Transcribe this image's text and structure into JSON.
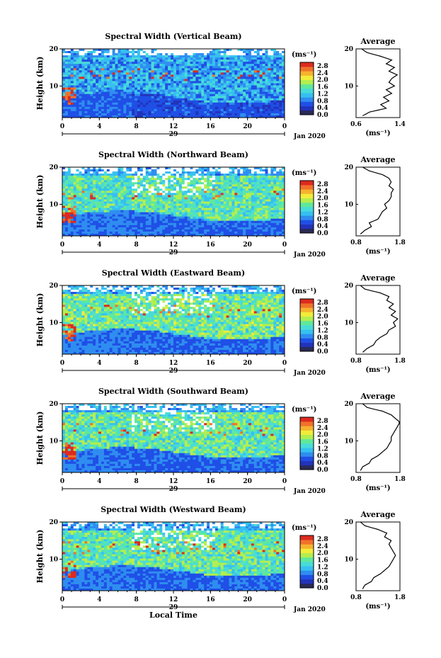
{
  "colors": {
    "scale": [
      "#2a2a55",
      "#2233bb",
      "#1f4fe6",
      "#2f8df0",
      "#36c0f0",
      "#48dcd8",
      "#5fe89c",
      "#b4ee4e",
      "#f2ec3a",
      "#f6b22e",
      "#f0722a",
      "#dd2a1e"
    ],
    "axis": "#000000",
    "gap": "#ffffff"
  },
  "chart_data": [
    {
      "type": "heatmap",
      "title": "Spectral Width (Vertical Beam)",
      "ylabel": "Height (km)",
      "xlabel": "",
      "x_ticks": [
        "0",
        "4",
        "8",
        "12",
        "16",
        "20",
        "0"
      ],
      "y_ticks": [
        "20",
        "10"
      ],
      "xlim": [
        0,
        24
      ],
      "ylim": [
        1.5,
        20
      ],
      "day_label": "29",
      "month_label": "Jan 2020",
      "colorbar": {
        "unit": "(ms⁻¹)",
        "ticks": [
          "2.8",
          "2.4",
          "2.0",
          "1.6",
          "1.2",
          "0.8",
          "0.4",
          "0.0"
        ],
        "range": [
          0,
          3.0
        ]
      },
      "profile": {
        "title": "Average",
        "xlabel": "(ms⁻¹)",
        "x_ticks": [
          "0.6",
          "1.4"
        ],
        "xlim": [
          0.6,
          1.4
        ],
        "y_ticks": [
          "20",
          "10"
        ],
        "heights": [
          2,
          3,
          4,
          5,
          6,
          7,
          8,
          9,
          10,
          11,
          12,
          13,
          14,
          15,
          16,
          17,
          18,
          19,
          20
        ],
        "values": [
          0.72,
          0.85,
          1.15,
          1.05,
          1.2,
          1.1,
          1.25,
          1.15,
          1.3,
          1.2,
          1.25,
          1.35,
          1.2,
          1.3,
          1.15,
          1.25,
          1.05,
          0.8,
          0.7
        ]
      },
      "field": {
        "base": 1.0,
        "low_level": 0.5,
        "upper_gaps": false
      }
    },
    {
      "type": "heatmap",
      "title": "Spectral Width (Northward Beam)",
      "ylabel": "Height (km)",
      "xlabel": "",
      "x_ticks": [
        "0",
        "4",
        "8",
        "12",
        "16",
        "20",
        "0"
      ],
      "y_ticks": [
        "20",
        "10"
      ],
      "xlim": [
        0,
        24
      ],
      "ylim": [
        1.5,
        20
      ],
      "day_label": "29",
      "month_label": "Jan 2020",
      "colorbar": {
        "unit": "(ms⁻¹)",
        "ticks": [
          "2.8",
          "2.4",
          "2.0",
          "1.6",
          "1.2",
          "0.8",
          "0.4",
          "0.0"
        ],
        "range": [
          0,
          3.0
        ]
      },
      "profile": {
        "title": "Average",
        "xlabel": "(ms⁻¹)",
        "x_ticks": [
          "0.8",
          "1.8"
        ],
        "xlim": [
          0.8,
          1.8
        ],
        "y_ticks": [
          "20",
          "10"
        ],
        "heights": [
          2,
          3,
          4,
          5,
          6,
          7,
          8,
          9,
          10,
          11,
          12,
          13,
          14,
          15,
          16,
          17,
          18,
          19,
          20
        ],
        "values": [
          0.9,
          1.0,
          1.15,
          1.1,
          1.3,
          1.35,
          1.4,
          1.5,
          1.45,
          1.55,
          1.6,
          1.6,
          1.65,
          1.55,
          1.6,
          1.55,
          1.4,
          1.1,
          0.95
        ]
      },
      "field": {
        "base": 1.5,
        "low_level": 0.6,
        "upper_gaps": true
      }
    },
    {
      "type": "heatmap",
      "title": "Spectral Width (Eastward Beam)",
      "ylabel": "Height (km)",
      "xlabel": "",
      "x_ticks": [
        "0",
        "4",
        "8",
        "12",
        "16",
        "20",
        "0"
      ],
      "y_ticks": [
        "20",
        "10"
      ],
      "xlim": [
        0,
        24
      ],
      "ylim": [
        1.5,
        20
      ],
      "day_label": "29",
      "month_label": "Jan 2020",
      "colorbar": {
        "unit": "(ms⁻¹)",
        "ticks": [
          "2.8",
          "2.4",
          "2.0",
          "1.6",
          "1.2",
          "0.8",
          "0.4",
          "0.0"
        ],
        "range": [
          0,
          3.0
        ]
      },
      "profile": {
        "title": "Average",
        "xlabel": "(ms⁻¹)",
        "x_ticks": [
          "0.8",
          "1.8"
        ],
        "xlim": [
          0.8,
          1.8
        ],
        "y_ticks": [
          "20",
          "10"
        ],
        "heights": [
          2,
          3,
          4,
          5,
          6,
          7,
          8,
          9,
          10,
          11,
          12,
          13,
          14,
          15,
          16,
          17,
          18,
          19,
          20
        ],
        "values": [
          0.95,
          1.05,
          1.2,
          1.25,
          1.35,
          1.5,
          1.55,
          1.7,
          1.65,
          1.75,
          1.6,
          1.7,
          1.55,
          1.65,
          1.5,
          1.55,
          1.35,
          1.0,
          0.9
        ]
      },
      "field": {
        "base": 1.6,
        "low_level": 0.6,
        "upper_gaps": true
      }
    },
    {
      "type": "heatmap",
      "title": "Spectral Width (Southward Beam)",
      "ylabel": "Height (km)",
      "xlabel": "",
      "x_ticks": [
        "0",
        "4",
        "8",
        "12",
        "16",
        "20",
        "0"
      ],
      "y_ticks": [
        "20",
        "10"
      ],
      "xlim": [
        0,
        24
      ],
      "ylim": [
        1.5,
        20
      ],
      "day_label": "29",
      "month_label": "Jan 2020",
      "colorbar": {
        "unit": "(ms⁻¹)",
        "ticks": [
          "2.8",
          "2.4",
          "2.0",
          "1.6",
          "1.2",
          "0.8",
          "0.4",
          "0.0"
        ],
        "range": [
          0,
          3.0
        ]
      },
      "profile": {
        "title": "Average",
        "xlabel": "(ms⁻¹)",
        "x_ticks": [
          "0.8",
          "1.8"
        ],
        "xlim": [
          0.8,
          1.8
        ],
        "y_ticks": [
          "20",
          "10"
        ],
        "heights": [
          2,
          3,
          4,
          5,
          6,
          7,
          8,
          9,
          10,
          11,
          12,
          13,
          14,
          15,
          16,
          17,
          18,
          19,
          20
        ],
        "values": [
          0.9,
          0.95,
          1.1,
          1.15,
          1.3,
          1.4,
          1.5,
          1.55,
          1.6,
          1.6,
          1.65,
          1.7,
          1.75,
          1.8,
          1.7,
          1.6,
          1.4,
          1.05,
          0.95
        ]
      },
      "field": {
        "base": 1.55,
        "low_level": 0.6,
        "upper_gaps": true
      }
    },
    {
      "type": "heatmap",
      "title": "Spectral Width (Westward Beam)",
      "ylabel": "Height (km)",
      "xlabel": "Local Time",
      "x_ticks": [
        "0",
        "4",
        "8",
        "12",
        "16",
        "20",
        "0"
      ],
      "y_ticks": [
        "20",
        "10"
      ],
      "xlim": [
        0,
        24
      ],
      "ylim": [
        1.5,
        20
      ],
      "day_label": "29",
      "month_label": "Jan 2020",
      "colorbar": {
        "unit": "(ms⁻¹)",
        "ticks": [
          "2.8",
          "2.4",
          "2.0",
          "1.6",
          "1.2",
          "0.8",
          "0.4",
          "0.0"
        ],
        "range": [
          0,
          3.0
        ]
      },
      "profile": {
        "title": "Average",
        "xlabel": "(ms⁻¹)",
        "x_ticks": [
          "0.8",
          "1.8"
        ],
        "xlim": [
          0.8,
          1.8
        ],
        "y_ticks": [
          "20",
          "10"
        ],
        "heights": [
          2,
          3,
          4,
          5,
          6,
          7,
          8,
          9,
          10,
          11,
          12,
          13,
          14,
          15,
          16,
          17,
          18,
          19,
          20
        ],
        "values": [
          0.95,
          1.0,
          1.15,
          1.2,
          1.35,
          1.45,
          1.55,
          1.6,
          1.65,
          1.7,
          1.65,
          1.6,
          1.55,
          1.6,
          1.45,
          1.5,
          1.3,
          1.0,
          0.9
        ]
      },
      "field": {
        "base": 1.55,
        "low_level": 0.6,
        "upper_gaps": true
      }
    }
  ]
}
